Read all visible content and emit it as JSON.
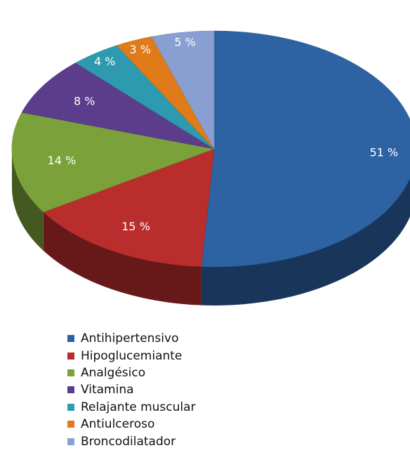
{
  "chart_data": {
    "type": "pie",
    "title": "",
    "categories": [
      "Antihipertensivo",
      "Hipoglucemiante",
      "Analgésico",
      "Vitamina",
      "Relajante muscular",
      "Antiulceroso",
      "Broncodilatador"
    ],
    "values": [
      51,
      15,
      14,
      8,
      4,
      3,
      5
    ],
    "labels": [
      "51 %",
      "15 %",
      "14 %",
      "8 %",
      "4 %",
      "3 %",
      "5 %"
    ],
    "colors": [
      "#2e63a3",
      "#b92e2c",
      "#7ba23a",
      "#5c3d8c",
      "#2e9ab0",
      "#e07b1a",
      "#8a9fd1"
    ],
    "start_angle_deg": 0,
    "direction": "clockwise",
    "style": "3d",
    "legend": "bottom"
  }
}
